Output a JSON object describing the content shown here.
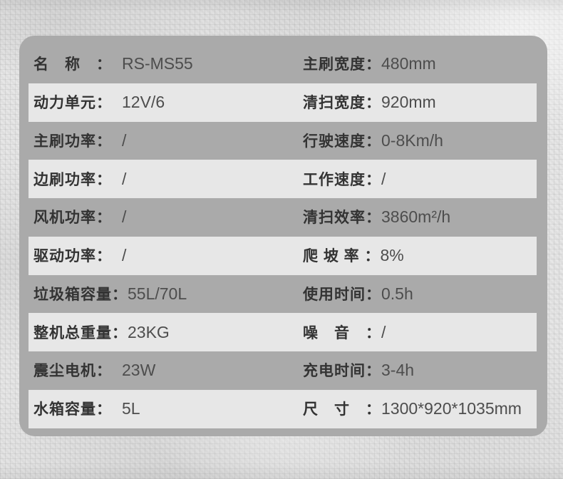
{
  "colors": {
    "page_background": "#e3e3e3",
    "panel_background": "#aaaaaa",
    "alt_row_background": "#e7e7e7",
    "label_text": "#333333",
    "value_text": "#4d4d4d"
  },
  "table": {
    "rows": [
      {
        "left": {
          "label": "名　称　：",
          "value": "RS-MS55"
        },
        "right": {
          "label": "主刷宽度：",
          "value": "480mm"
        }
      },
      {
        "left": {
          "label": "动力单元：",
          "value": "12V/6"
        },
        "right": {
          "label": "清扫宽度：",
          "value": "920mm"
        }
      },
      {
        "left": {
          "label": "主刷功率：",
          "value": "/"
        },
        "right": {
          "label": "行驶速度：",
          "value": "0-8Km/h"
        }
      },
      {
        "left": {
          "label": "边刷功率：",
          "value": "/"
        },
        "right": {
          "label": "工作速度：",
          "value": "/"
        }
      },
      {
        "left": {
          "label": "风机功率：",
          "value": "/"
        },
        "right": {
          "label": "清扫效率：",
          "value": "3860m²/h"
        }
      },
      {
        "left": {
          "label": "驱动功率：",
          "value": "/"
        },
        "right": {
          "label": "爬 坡 率 ：",
          "value": "8%"
        }
      },
      {
        "left": {
          "label": "垃圾箱容量：",
          "value": "55L/70L"
        },
        "right": {
          "label": "使用时间：",
          "value": "0.5h"
        }
      },
      {
        "left": {
          "label": "整机总重量：",
          "value": "23KG"
        },
        "right": {
          "label": "噪　音　：",
          "value": "/"
        }
      },
      {
        "left": {
          "label": "震尘电机：",
          "value": "23W"
        },
        "right": {
          "label": "充电时间：",
          "value": "3-4h"
        }
      },
      {
        "left": {
          "label": "水箱容量：",
          "value": "5L"
        },
        "right": {
          "label": "尺　寸　：",
          "value": "1300*920*1035mm"
        }
      }
    ]
  }
}
